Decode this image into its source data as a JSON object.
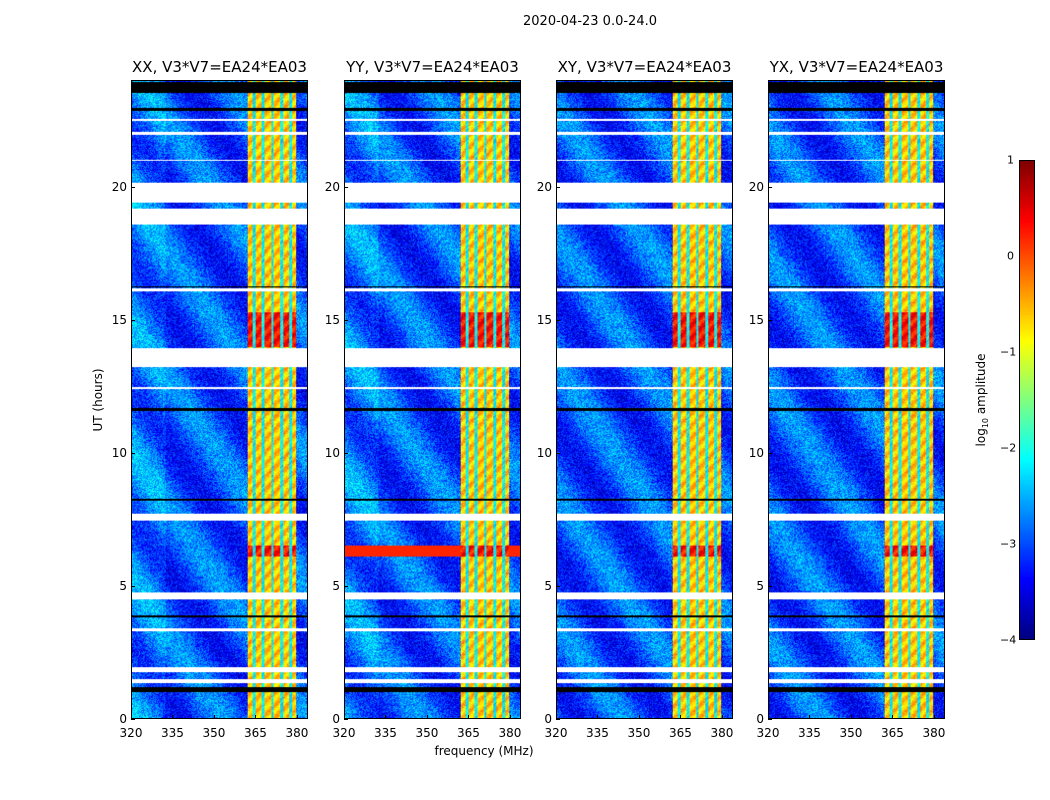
{
  "chart_data": {
    "type": "heatmap",
    "title": "2020-04-23 0.0-24.0",
    "xlabel": "frequency (MHz)",
    "ylabel": "UT (hours)",
    "xlim": [
      320,
      384
    ],
    "ylim": [
      0,
      24
    ],
    "xticks": [
      "320",
      "335",
      "350",
      "365",
      "380"
    ],
    "yticks": [
      "0",
      "5",
      "10",
      "15",
      "20"
    ],
    "panels": [
      {
        "title": "XX, V3*V7=EA24*EA03"
      },
      {
        "title": "YY, V3*V7=EA24*EA03"
      },
      {
        "title": "XY, V3*V7=EA24*EA03"
      },
      {
        "title": "YX, V3*V7=EA24*EA03"
      }
    ],
    "colorbar": {
      "label": "log",
      "label_sub": "10",
      "label_rest": " amplitude",
      "range": [
        -4,
        1
      ],
      "ticks": [
        "1",
        "0",
        "−1",
        "−2",
        "−3",
        "−4"
      ],
      "colormap": "jet"
    },
    "background_level": -3.0,
    "rfi_band_mhz": [
      362,
      380
    ],
    "rfi_level": -0.6,
    "strong_rfi_hours": [
      [
        6.1,
        6.5
      ],
      [
        14.0,
        15.3
      ]
    ],
    "flagged_hours_white": [
      [
        1.35,
        1.5
      ],
      [
        1.75,
        1.95
      ],
      [
        3.3,
        3.4
      ],
      [
        4.5,
        4.75
      ],
      [
        7.45,
        7.7
      ],
      [
        12.4,
        12.5
      ],
      [
        13.25,
        13.95
      ],
      [
        16.1,
        16.2
      ],
      [
        18.6,
        19.2
      ],
      [
        19.45,
        20.2
      ],
      [
        21.0,
        21.05
      ],
      [
        22.0,
        22.1
      ],
      [
        22.5,
        22.6
      ]
    ],
    "flagged_hours_black": [
      [
        1.0,
        1.2
      ],
      [
        3.8,
        3.9
      ],
      [
        8.2,
        8.3
      ],
      [
        11.6,
        11.7
      ],
      [
        16.25,
        16.3
      ],
      [
        22.9,
        23.0
      ],
      [
        23.55,
        24.0
      ]
    ]
  }
}
